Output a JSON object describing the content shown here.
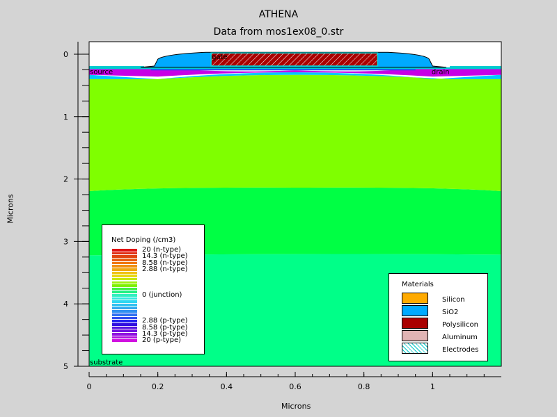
{
  "chart_data": {
    "type": "heatmap",
    "title": "ATHENA",
    "subtitle": "Data from mos1ex08_0.str",
    "xlabel": "Microns",
    "ylabel": "Microns",
    "xlim": [
      0,
      1.2
    ],
    "ylim": [
      5,
      -0.2
    ],
    "x_ticks": [
      {
        "value": 0,
        "label": "0"
      },
      {
        "value": 0.2,
        "label": "0.2"
      },
      {
        "value": 0.4,
        "label": "0.4"
      },
      {
        "value": 0.6,
        "label": "0.6"
      },
      {
        "value": 0.8,
        "label": "0.8"
      },
      {
        "value": 1,
        "label": "1"
      }
    ],
    "y_ticks": [
      {
        "value": 0,
        "label": "0"
      },
      {
        "value": 1,
        "label": "1"
      },
      {
        "value": 2,
        "label": "2"
      },
      {
        "value": 3,
        "label": "3"
      },
      {
        "value": 4,
        "label": "4"
      },
      {
        "value": 5,
        "label": "5"
      }
    ],
    "region_labels": [
      {
        "text": "gate",
        "x": 0.355,
        "y": 0.08
      },
      {
        "text": "source",
        "x": 0.0,
        "y": 0.32
      },
      {
        "text": "drain",
        "x": 0.995,
        "y": 0.32
      },
      {
        "text": "substrate",
        "x": 0.0,
        "y": 4.97
      }
    ],
    "doping_bands": [
      {
        "depth_top": 0.4,
        "depth_bottom": 2.15,
        "color": "#7fff00"
      },
      {
        "depth_top": 2.15,
        "depth_bottom": 3.2,
        "color": "#00ff44"
      },
      {
        "depth_top": 3.2,
        "depth_bottom": 5.0,
        "color": "#00ff88"
      }
    ],
    "doping_legend": {
      "title": "Net Doping (/cm3)",
      "labels": [
        {
          "text": "20 (n-type)",
          "row": 0
        },
        {
          "text": "14.3 (n-type)",
          "row": 2
        },
        {
          "text": "8.58 (n-type)",
          "row": 4
        },
        {
          "text": "2.88 (n-type)",
          "row": 6
        },
        {
          "text": "0 (junction)",
          "row": 14
        },
        {
          "text": "2.88 (p-type)",
          "row": 22
        },
        {
          "text": "8.58 (p-type)",
          "row": 24
        },
        {
          "text": "14.3 (p-type)",
          "row": 26
        },
        {
          "text": "20 (p-type)",
          "row": 28
        }
      ],
      "colors": [
        "#e01010",
        "#e02a10",
        "#e04410",
        "#e85e10",
        "#f07810",
        "#f09010",
        "#f0a810",
        "#f0c010",
        "#e8d810",
        "#c8e810",
        "#a0f010",
        "#7ff000",
        "#40f040",
        "#20f080",
        "#30f0c0",
        "#30e8e0",
        "#30d8f0",
        "#30c0f0",
        "#30a8f0",
        "#3090f0",
        "#3070f0",
        "#3050f0",
        "#2020f0",
        "#3010e0",
        "#5010e0",
        "#7010e0",
        "#9010e0",
        "#b010e0",
        "#d010e0"
      ]
    },
    "materials_legend": {
      "title": "Materials",
      "items": [
        {
          "label": "Silicon",
          "color": "#ffaa00"
        },
        {
          "label": "SiO2",
          "color": "#00aaff"
        },
        {
          "label": "Polysilicon",
          "color": "#aa0000"
        },
        {
          "label": "Aluminum",
          "color": "#e0b4b4"
        },
        {
          "label": "Electrodes",
          "color": "#ffffff",
          "pattern": "hatch-cyan"
        }
      ]
    }
  }
}
